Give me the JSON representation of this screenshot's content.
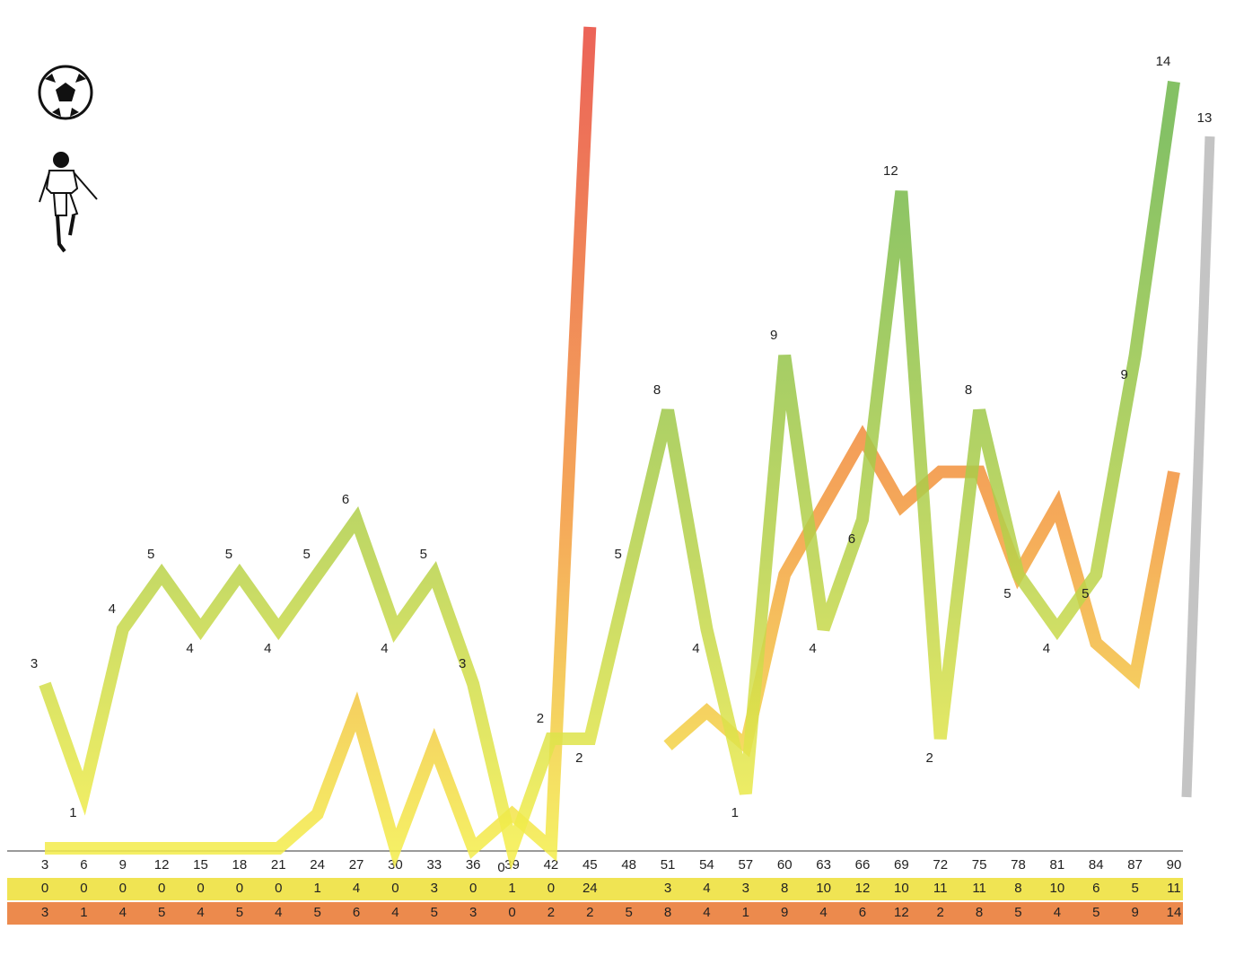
{
  "chart_data": {
    "type": "line",
    "categories": [
      "3",
      "6",
      "9",
      "12",
      "15",
      "18",
      "21",
      "24",
      "27",
      "30",
      "33",
      "36",
      "39",
      "42",
      "45",
      "48",
      "51",
      "54",
      "57",
      "60",
      "63",
      "66",
      "69",
      "72",
      "75",
      "78",
      "81",
      "84",
      "87",
      "90"
    ],
    "series": [
      {
        "color": "#e9603c",
        "axis": "y2",
        "values": [
          0,
          0,
          0,
          0,
          0,
          0,
          0,
          1,
          4,
          0,
          3,
          0,
          1,
          0,
          24,
          null,
          3,
          4,
          3,
          8,
          10,
          12,
          10,
          11,
          11,
          8,
          10,
          6,
          5,
          11
        ]
      },
      {
        "color": "#7dbb4a",
        "values": [
          3,
          1,
          4,
          5,
          4,
          5,
          4,
          5,
          6,
          4,
          5,
          3,
          0,
          2,
          2,
          5,
          8,
          4,
          1,
          9,
          4,
          6,
          12,
          2,
          8,
          5,
          4,
          5,
          9,
          14
        ]
      }
    ],
    "marker_value": 13,
    "ylim": [
      0,
      15
    ],
    "y2lim": [
      0,
      24
    ]
  }
}
